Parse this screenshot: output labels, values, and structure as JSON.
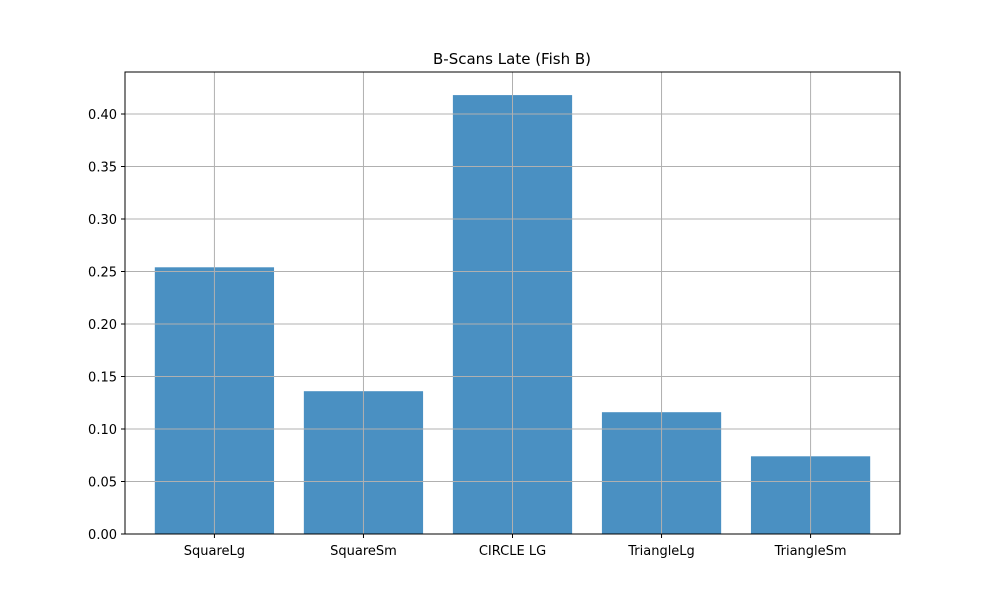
{
  "chart_data": {
    "type": "bar",
    "title": "B-Scans Late (Fish B)",
    "xlabel": "",
    "ylabel": "",
    "categories": [
      "SquareLg",
      "SquareSm",
      "CIRCLE LG",
      "TriangleLg",
      "TriangleSm"
    ],
    "values": [
      0.254,
      0.136,
      0.418,
      0.116,
      0.074
    ],
    "ylim": [
      0,
      0.44
    ],
    "yticks": [
      "0.00",
      "0.05",
      "0.10",
      "0.15",
      "0.20",
      "0.25",
      "0.30",
      "0.35",
      "0.40"
    ],
    "grid": true,
    "bar_color": "#4a90c2",
    "grid_color": "#b0b0b0"
  }
}
